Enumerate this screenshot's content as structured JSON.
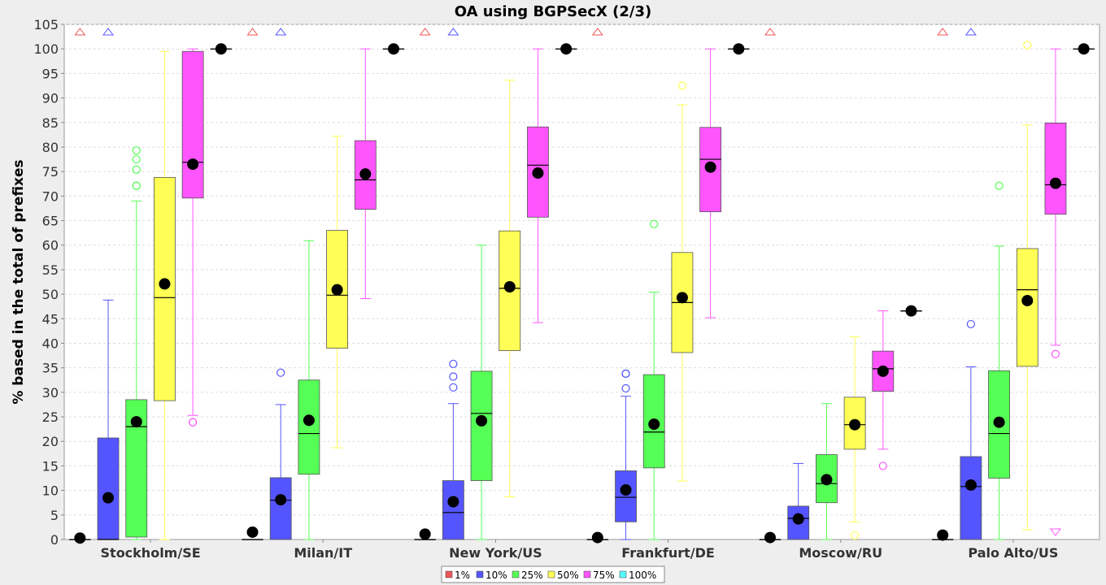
{
  "chart_data": {
    "type": "box",
    "title": "OA using BGPSecX  (2/3)",
    "xlabel": "",
    "ylabel": "% based in the total of prefixes",
    "ylim": [
      0,
      105
    ],
    "yticks": [
      0,
      5,
      10,
      15,
      20,
      25,
      30,
      35,
      40,
      45,
      50,
      55,
      60,
      65,
      70,
      75,
      80,
      85,
      90,
      95,
      100,
      105
    ],
    "grid": true,
    "legend_position": "bottom",
    "categories": [
      "Stockholm/SE",
      "Milan/IT",
      "New York/US",
      "Frankfurt/DE",
      "Moscow/RU",
      "Palo Alto/US"
    ],
    "series": [
      {
        "name": "1%",
        "color": "#ee5555",
        "boxes": [
          {
            "q1": 0,
            "median": 0,
            "q3": 0,
            "whisker_low": 0,
            "whisker_high": 0,
            "mean": 0.3,
            "outliers": [],
            "far_out_high": true,
            "far_out_low": false
          },
          {
            "q1": 0,
            "median": 0,
            "q3": 0,
            "whisker_low": 0,
            "whisker_high": 0,
            "mean": 1.5,
            "outliers": [],
            "far_out_high": true,
            "far_out_low": false
          },
          {
            "q1": 0,
            "median": 0,
            "q3": 0,
            "whisker_low": 0,
            "whisker_high": 0,
            "mean": 1.1,
            "outliers": [],
            "far_out_high": true,
            "far_out_low": false
          },
          {
            "q1": 0,
            "median": 0,
            "q3": 0,
            "whisker_low": 0,
            "whisker_high": 0,
            "mean": 0.4,
            "outliers": [],
            "far_out_high": true,
            "far_out_low": false
          },
          {
            "q1": 0,
            "median": 0,
            "q3": 0,
            "whisker_low": 0,
            "whisker_high": 0,
            "mean": 0.4,
            "outliers": [],
            "far_out_high": true,
            "far_out_low": false
          },
          {
            "q1": 0,
            "median": 0,
            "q3": 0,
            "whisker_low": 0,
            "whisker_high": 0,
            "mean": 0.9,
            "outliers": [],
            "far_out_high": true,
            "far_out_low": false
          }
        ]
      },
      {
        "name": "10%",
        "color": "#5555ff",
        "boxes": [
          {
            "q1": 0,
            "median": 0,
            "q3": 20.7,
            "whisker_low": 0,
            "whisker_high": 48.8,
            "mean": 8.5,
            "outliers": [],
            "far_out_high": true,
            "far_out_low": false
          },
          {
            "q1": 0,
            "median": 8,
            "q3": 12.6,
            "whisker_low": 0,
            "whisker_high": 27.5,
            "mean": 8.1,
            "outliers": [
              34
            ],
            "far_out_high": true,
            "far_out_low": false
          },
          {
            "q1": 0,
            "median": 5.5,
            "q3": 12,
            "whisker_low": 0,
            "whisker_high": 27.7,
            "mean": 7.7,
            "outliers": [
              31,
              33.2,
              35.8
            ],
            "far_out_high": true,
            "far_out_low": false
          },
          {
            "q1": 3.6,
            "median": 8.6,
            "q3": 14,
            "whisker_low": 0,
            "whisker_high": 29.2,
            "mean": 10.1,
            "outliers": [
              30.8,
              33.8,
              33.8
            ],
            "far_out_high": false,
            "far_out_low": false
          },
          {
            "q1": 0,
            "median": 4.3,
            "q3": 6.8,
            "whisker_low": 0,
            "whisker_high": 15.5,
            "mean": 4.2,
            "outliers": [],
            "far_out_high": false,
            "far_out_low": false
          },
          {
            "q1": 0,
            "median": 10.8,
            "q3": 16.9,
            "whisker_low": 0,
            "whisker_high": 35.2,
            "mean": 11.1,
            "outliers": [
              43.9
            ],
            "far_out_high": true,
            "far_out_low": false
          }
        ]
      },
      {
        "name": "25%",
        "color": "#55ff55",
        "boxes": [
          {
            "q1": 0.5,
            "median": 23,
            "q3": 28.5,
            "whisker_low": 0,
            "whisker_high": 69,
            "mean": 24,
            "outliers": [
              72.1,
              72.1,
              75.4,
              77.5,
              79.3
            ],
            "far_out_high": false,
            "far_out_low": false
          },
          {
            "q1": 13.3,
            "median": 21.6,
            "q3": 32.5,
            "whisker_low": 0,
            "whisker_high": 60.9,
            "mean": 24.3,
            "outliers": [],
            "far_out_high": false,
            "far_out_low": false
          },
          {
            "q1": 12,
            "median": 25.7,
            "q3": 34.3,
            "whisker_low": 0,
            "whisker_high": 60,
            "mean": 24.2,
            "outliers": [],
            "far_out_high": false,
            "far_out_low": false
          },
          {
            "q1": 14.6,
            "median": 21.9,
            "q3": 33.6,
            "whisker_low": 0,
            "whisker_high": 50.4,
            "mean": 23.5,
            "outliers": [
              64.3
            ],
            "far_out_high": false,
            "far_out_low": false
          },
          {
            "q1": 7.5,
            "median": 11.4,
            "q3": 17.3,
            "whisker_low": 0,
            "whisker_high": 27.7,
            "mean": 12.2,
            "outliers": [],
            "far_out_high": false,
            "far_out_low": false
          },
          {
            "q1": 12.5,
            "median": 21.6,
            "q3": 34.4,
            "whisker_low": 0,
            "whisker_high": 59.8,
            "mean": 23.9,
            "outliers": [
              72.1
            ],
            "far_out_high": false,
            "far_out_low": false
          }
        ]
      },
      {
        "name": "50%",
        "color": "#ffff55",
        "boxes": [
          {
            "q1": 28.3,
            "median": 49.3,
            "q3": 73.8,
            "whisker_low": 0,
            "whisker_high": 99.5,
            "mean": 52.1,
            "outliers": [],
            "far_out_high": false,
            "far_out_low": false
          },
          {
            "q1": 39,
            "median": 49.8,
            "q3": 63,
            "whisker_low": 18.7,
            "whisker_high": 82.2,
            "mean": 50.9,
            "outliers": [],
            "far_out_high": false,
            "far_out_low": false
          },
          {
            "q1": 38.5,
            "median": 51.2,
            "q3": 62.9,
            "whisker_low": 8.7,
            "whisker_high": 93.6,
            "mean": 51.5,
            "outliers": [],
            "far_out_high": false,
            "far_out_low": false
          },
          {
            "q1": 38.1,
            "median": 48.3,
            "q3": 58.5,
            "whisker_low": 11.9,
            "whisker_high": 88.6,
            "mean": 49.3,
            "outliers": [
              92.5
            ],
            "far_out_high": false,
            "far_out_low": false
          },
          {
            "q1": 18.4,
            "median": 23.4,
            "q3": 29,
            "whisker_low": 3.6,
            "whisker_high": 41.3,
            "mean": 23.4,
            "outliers": [
              0.8
            ],
            "far_out_high": false,
            "far_out_low": false
          },
          {
            "q1": 35.3,
            "median": 50.9,
            "q3": 59.3,
            "whisker_low": 2,
            "whisker_high": 84.5,
            "mean": 48.7,
            "outliers": [
              100.8
            ],
            "far_out_high": false,
            "far_out_low": false
          }
        ]
      },
      {
        "name": "75%",
        "color": "#ff55ff",
        "boxes": [
          {
            "q1": 69.6,
            "median": 76.9,
            "q3": 99.5,
            "whisker_low": 25.3,
            "whisker_high": 100,
            "mean": 76.5,
            "outliers": [
              23.9,
              23.9
            ],
            "far_out_high": false,
            "far_out_low": false
          },
          {
            "q1": 67.3,
            "median": 73.3,
            "q3": 81.3,
            "whisker_low": 49.1,
            "whisker_high": 100,
            "mean": 74.5,
            "outliers": [],
            "far_out_high": false,
            "far_out_low": false
          },
          {
            "q1": 65.7,
            "median": 76.3,
            "q3": 84.1,
            "whisker_low": 44.2,
            "whisker_high": 100,
            "mean": 74.7,
            "outliers": [],
            "far_out_high": false,
            "far_out_low": false
          },
          {
            "q1": 66.8,
            "median": 77.5,
            "q3": 84,
            "whisker_low": 45.2,
            "whisker_high": 100,
            "mean": 75.9,
            "outliers": [],
            "far_out_high": false,
            "far_out_low": false
          },
          {
            "q1": 30.2,
            "median": 34.8,
            "q3": 38.4,
            "whisker_low": 18.4,
            "whisker_high": 46.6,
            "mean": 34.3,
            "outliers": [
              15
            ],
            "far_out_high": false,
            "far_out_low": false
          },
          {
            "q1": 66.3,
            "median": 72.3,
            "q3": 84.9,
            "whisker_low": 39.6,
            "whisker_high": 100,
            "mean": 72.6,
            "outliers": [
              37.8
            ],
            "far_out_high": false,
            "far_out_low": true
          }
        ]
      },
      {
        "name": "100%",
        "color": "#55ffff",
        "boxes": [
          {
            "q1": 100,
            "median": 100,
            "q3": 100,
            "whisker_low": 100,
            "whisker_high": 100,
            "mean": 100,
            "outliers": [],
            "far_out_high": false,
            "far_out_low": false
          },
          {
            "q1": 100,
            "median": 100,
            "q3": 100,
            "whisker_low": 100,
            "whisker_high": 100,
            "mean": 100,
            "outliers": [],
            "far_out_high": false,
            "far_out_low": false
          },
          {
            "q1": 100,
            "median": 100,
            "q3": 100,
            "whisker_low": 100,
            "whisker_high": 100,
            "mean": 100,
            "outliers": [],
            "far_out_high": false,
            "far_out_low": false
          },
          {
            "q1": 100,
            "median": 100,
            "q3": 100,
            "whisker_low": 100,
            "whisker_high": 100,
            "mean": 100,
            "outliers": [],
            "far_out_high": false,
            "far_out_low": false
          },
          {
            "q1": 46.6,
            "median": 46.6,
            "q3": 46.6,
            "whisker_low": 46.6,
            "whisker_high": 46.6,
            "mean": 46.6,
            "outliers": [],
            "far_out_high": false,
            "far_out_low": false
          },
          {
            "q1": 100,
            "median": 100,
            "q3": 100,
            "whisker_low": 100,
            "whisker_high": 100,
            "mean": 100,
            "outliers": [],
            "far_out_high": false,
            "far_out_low": false
          }
        ]
      }
    ]
  }
}
